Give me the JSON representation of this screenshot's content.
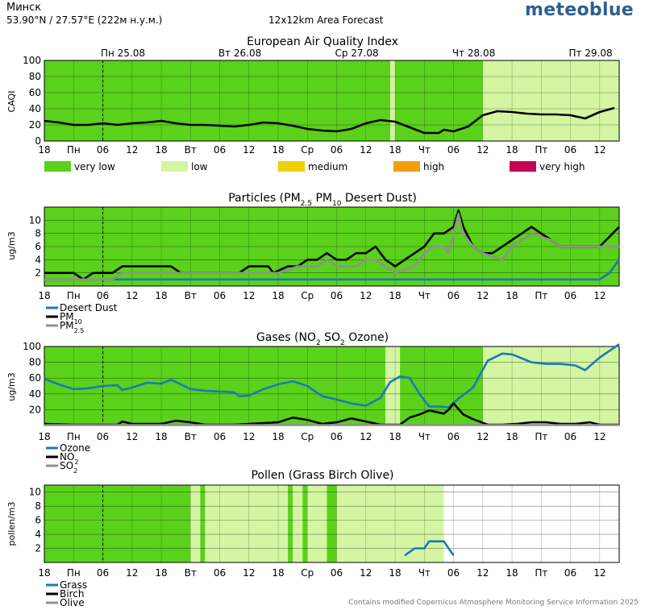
{
  "header": {
    "location": "Минск",
    "coords": "53.90°N / 27.57°E (222м н.у.м.)",
    "forecast": "12x12km Area Forecast",
    "brand": "meteoblue"
  },
  "footer": "Contains modified Copernicus Atmosphere Monitoring Service Information 2025",
  "colors": {
    "very_low": "#5ad11a",
    "low": "#d4f5a2",
    "medium": "#f0d000",
    "high": "#f29e0f",
    "very_high": "#c40055",
    "blue": "#1a7ab8",
    "black": "#000000",
    "gray": "#909090"
  },
  "shared_x": {
    "unit": "hours from start (first tick is 18:00)",
    "date_labels": [
      {
        "hour": 12,
        "text": "Пн 25.08"
      },
      {
        "hour": 36,
        "text": "Вт 26.08"
      },
      {
        "hour": 60,
        "text": "Ср 27.08"
      },
      {
        "hour": 84,
        "text": "Чт 28.08"
      },
      {
        "hour": 108,
        "text": "Пт 29.08"
      }
    ],
    "tick_labels": [
      "18",
      "Пн",
      "06",
      "12",
      "18",
      "Вт",
      "06",
      "12",
      "18",
      "Ср",
      "06",
      "12",
      "18",
      "Чт",
      "06",
      "12",
      "18",
      "Пт",
      "06",
      "12"
    ]
  },
  "legend_aqi": [
    {
      "key": "very_low",
      "label": "very low"
    },
    {
      "key": "low",
      "label": "low"
    },
    {
      "key": "medium",
      "label": "medium"
    },
    {
      "key": "high",
      "label": "high"
    },
    {
      "key": "very_high",
      "label": "very high"
    }
  ],
  "chart_data": [
    {
      "type": "line",
      "title": "European Air Quality Index",
      "ylabel": "CAQI",
      "ylim": [
        0,
        100
      ],
      "yticks": [
        0,
        20,
        40,
        60,
        80,
        100
      ],
      "background": [
        {
          "from": 0,
          "to": 71,
          "level": "very_low"
        },
        {
          "from": 71,
          "to": 72,
          "level": "low"
        },
        {
          "from": 72,
          "to": 90,
          "level": "very_low"
        },
        {
          "from": 90,
          "to": 118,
          "level": "low"
        }
      ],
      "series": [
        {
          "color": "black",
          "points": [
            [
              0,
              25
            ],
            [
              3,
              23
            ],
            [
              6,
              20
            ],
            [
              9,
              20
            ],
            [
              12,
              22
            ],
            [
              15,
              20
            ],
            [
              18,
              22
            ],
            [
              21,
              23
            ],
            [
              24,
              25
            ],
            [
              27,
              22
            ],
            [
              30,
              20
            ],
            [
              33,
              20
            ],
            [
              36,
              19
            ],
            [
              39,
              18
            ],
            [
              42,
              20
            ],
            [
              45,
              23
            ],
            [
              48,
              22
            ],
            [
              51,
              19
            ],
            [
              54,
              15
            ],
            [
              57,
              13
            ],
            [
              60,
              12
            ],
            [
              63,
              15
            ],
            [
              66,
              22
            ],
            [
              69,
              26
            ],
            [
              72,
              24
            ],
            [
              75,
              17
            ],
            [
              78,
              10
            ],
            [
              81,
              10
            ],
            [
              82,
              14
            ],
            [
              84,
              12
            ],
            [
              87,
              18
            ],
            [
              90,
              32
            ],
            [
              93,
              37
            ],
            [
              96,
              36
            ],
            [
              99,
              34
            ],
            [
              102,
              33
            ],
            [
              105,
              33
            ],
            [
              108,
              32
            ],
            [
              111,
              28
            ],
            [
              114,
              36
            ],
            [
              117,
              41
            ]
          ]
        }
      ]
    },
    {
      "type": "line",
      "title": "Particles (PM2.5 PM10 Desert Dust)",
      "ylabel": "ug/m3",
      "ylim": [
        0,
        12
      ],
      "yticks": [
        2,
        4,
        6,
        8,
        10
      ],
      "background": [
        {
          "from": 0,
          "to": 118,
          "level": "very_low"
        }
      ],
      "legend": [
        "Desert Dust",
        "PM10",
        "PM2.5"
      ],
      "series": [
        {
          "name": "Desert Dust",
          "color": "blue",
          "points": [
            [
              0,
              1
            ],
            [
              114,
              1
            ],
            [
              116,
              2
            ],
            [
              118,
              4
            ]
          ]
        },
        {
          "name": "PM10",
          "color": "black",
          "points": [
            [
              0,
              2
            ],
            [
              6,
              2
            ],
            [
              8,
              1
            ],
            [
              10,
              2
            ],
            [
              14,
              2
            ],
            [
              16,
              3
            ],
            [
              24,
              3
            ],
            [
              26,
              3
            ],
            [
              28,
              2
            ],
            [
              40,
              2
            ],
            [
              42,
              3
            ],
            [
              46,
              3
            ],
            [
              47,
              2
            ],
            [
              50,
              3
            ],
            [
              52,
              3
            ],
            [
              54,
              4
            ],
            [
              56,
              4
            ],
            [
              58,
              5
            ],
            [
              60,
              4
            ],
            [
              62,
              4
            ],
            [
              64,
              5
            ],
            [
              66,
              5
            ],
            [
              68,
              6
            ],
            [
              70,
              4
            ],
            [
              72,
              3
            ],
            [
              74,
              4
            ],
            [
              76,
              5
            ],
            [
              78,
              6
            ],
            [
              80,
              8
            ],
            [
              82,
              8
            ],
            [
              84,
              9
            ],
            [
              85,
              11.5
            ],
            [
              86,
              9
            ],
            [
              88,
              6
            ],
            [
              90,
              5
            ],
            [
              92,
              5
            ],
            [
              94,
              6
            ],
            [
              96,
              7
            ],
            [
              98,
              8
            ],
            [
              100,
              9
            ],
            [
              102,
              8
            ],
            [
              104,
              7
            ],
            [
              106,
              6
            ],
            [
              114,
              6
            ],
            [
              118,
              9
            ]
          ]
        },
        {
          "name": "PM2.5",
          "color": "gray",
          "points": [
            [
              0,
              1
            ],
            [
              14,
              1
            ],
            [
              16,
              2
            ],
            [
              26,
              2
            ],
            [
              40,
              2
            ],
            [
              44,
              2
            ],
            [
              48,
              2
            ],
            [
              52,
              3
            ],
            [
              56,
              3
            ],
            [
              58,
              4
            ],
            [
              60,
              3
            ],
            [
              64,
              3
            ],
            [
              66,
              4
            ],
            [
              68,
              4
            ],
            [
              70,
              3
            ],
            [
              72,
              2
            ],
            [
              76,
              3
            ],
            [
              78,
              5
            ],
            [
              80,
              6
            ],
            [
              82,
              6
            ],
            [
              83,
              5
            ],
            [
              85,
              11
            ],
            [
              86,
              8
            ],
            [
              88,
              6
            ],
            [
              90,
              5
            ],
            [
              94,
              4
            ],
            [
              96,
              6
            ],
            [
              100,
              8
            ],
            [
              104,
              7
            ],
            [
              106,
              6
            ],
            [
              118,
              6
            ]
          ]
        }
      ]
    },
    {
      "type": "line",
      "title": "Gases (NO2 SO2 Ozone)",
      "ylabel": "ug/m3",
      "ylim": [
        0,
        100
      ],
      "yticks": [
        20,
        40,
        60,
        80,
        100
      ],
      "background": [
        {
          "from": 0,
          "to": 70,
          "level": "very_low"
        },
        {
          "from": 70,
          "to": 73,
          "level": "low"
        },
        {
          "from": 73,
          "to": 90,
          "level": "very_low"
        },
        {
          "from": 90,
          "to": 118,
          "level": "low"
        }
      ],
      "legend": [
        "Ozone",
        "NO2",
        "SO2"
      ],
      "series": [
        {
          "name": "Ozone",
          "color": "blue",
          "points": [
            [
              0,
              59
            ],
            [
              3,
              52
            ],
            [
              6,
              46
            ],
            [
              9,
              47
            ],
            [
              12,
              50
            ],
            [
              15,
              51
            ],
            [
              16,
              45
            ],
            [
              18,
              48
            ],
            [
              21,
              54
            ],
            [
              24,
              53
            ],
            [
              26,
              58
            ],
            [
              28,
              52
            ],
            [
              30,
              46
            ],
            [
              33,
              44
            ],
            [
              36,
              43
            ],
            [
              39,
              42
            ],
            [
              40,
              37
            ],
            [
              42,
              38
            ],
            [
              45,
              46
            ],
            [
              48,
              52
            ],
            [
              51,
              56
            ],
            [
              54,
              50
            ],
            [
              57,
              37
            ],
            [
              60,
              33
            ],
            [
              63,
              28
            ],
            [
              66,
              25
            ],
            [
              69,
              35
            ],
            [
              71,
              55
            ],
            [
              73,
              62
            ],
            [
              75,
              60
            ],
            [
              77,
              40
            ],
            [
              79,
              24
            ],
            [
              81,
              24
            ],
            [
              83,
              23
            ],
            [
              85,
              34
            ],
            [
              88,
              48
            ],
            [
              91,
              82
            ],
            [
              94,
              91
            ],
            [
              96,
              90
            ],
            [
              98,
              85
            ],
            [
              100,
              80
            ],
            [
              103,
              78
            ],
            [
              106,
              78
            ],
            [
              109,
              76
            ],
            [
              111,
              70
            ],
            [
              114,
              86
            ],
            [
              118,
              103
            ]
          ]
        },
        {
          "name": "NO2",
          "color": "black",
          "points": [
            [
              0,
              2
            ],
            [
              6,
              1
            ],
            [
              15,
              1
            ],
            [
              16,
              5
            ],
            [
              18,
              2
            ],
            [
              24,
              2
            ],
            [
              27,
              6
            ],
            [
              30,
              4
            ],
            [
              33,
              1
            ],
            [
              39,
              1
            ],
            [
              42,
              2
            ],
            [
              48,
              4
            ],
            [
              51,
              10
            ],
            [
              54,
              7
            ],
            [
              57,
              2
            ],
            [
              60,
              4
            ],
            [
              63,
              9
            ],
            [
              66,
              5
            ],
            [
              69,
              1
            ],
            [
              73,
              1
            ],
            [
              75,
              10
            ],
            [
              77,
              14
            ],
            [
              79,
              19
            ],
            [
              82,
              15
            ],
            [
              83,
              20
            ],
            [
              84,
              28
            ],
            [
              86,
              14
            ],
            [
              88,
              8
            ],
            [
              91,
              1
            ],
            [
              94,
              1
            ],
            [
              97,
              2
            ],
            [
              100,
              4
            ],
            [
              103,
              4
            ],
            [
              106,
              2
            ],
            [
              109,
              2
            ],
            [
              112,
              4
            ],
            [
              114,
              1
            ],
            [
              118,
              1
            ]
          ]
        },
        {
          "name": "SO2",
          "color": "gray",
          "points": [
            [
              0,
              0.5
            ],
            [
              118,
              0.5
            ]
          ]
        }
      ]
    },
    {
      "type": "line",
      "title": "Pollen (Grass Birch Olive)",
      "ylabel": "pollen/m3",
      "ylim": [
        0,
        11
      ],
      "yticks": [
        2,
        4,
        6,
        8,
        10
      ],
      "background": [
        {
          "from": 0,
          "to": 30,
          "level": "very_low"
        },
        {
          "from": 30,
          "to": 32,
          "level": "low"
        },
        {
          "from": 32,
          "to": 33,
          "level": "very_low"
        },
        {
          "from": 33,
          "to": 50,
          "level": "low"
        },
        {
          "from": 50,
          "to": 51,
          "level": "very_low"
        },
        {
          "from": 51,
          "to": 53,
          "level": "low"
        },
        {
          "from": 53,
          "to": 54,
          "level": "very_low"
        },
        {
          "from": 54,
          "to": 58,
          "level": "low"
        },
        {
          "from": 58,
          "to": 60,
          "level": "very_low"
        },
        {
          "from": 60,
          "to": 66,
          "level": "low"
        },
        {
          "from": 66,
          "to": 82,
          "level": "low"
        }
      ],
      "legend": [
        "Grass",
        "Birch",
        "Olive"
      ],
      "series": [
        {
          "name": "Grass",
          "color": "blue",
          "points": [
            [
              74,
              1
            ],
            [
              76,
              2
            ],
            [
              78,
              2
            ],
            [
              79,
              3
            ],
            [
              82,
              3
            ],
            [
              83,
              2
            ],
            [
              84,
              1
            ]
          ]
        }
      ]
    }
  ]
}
